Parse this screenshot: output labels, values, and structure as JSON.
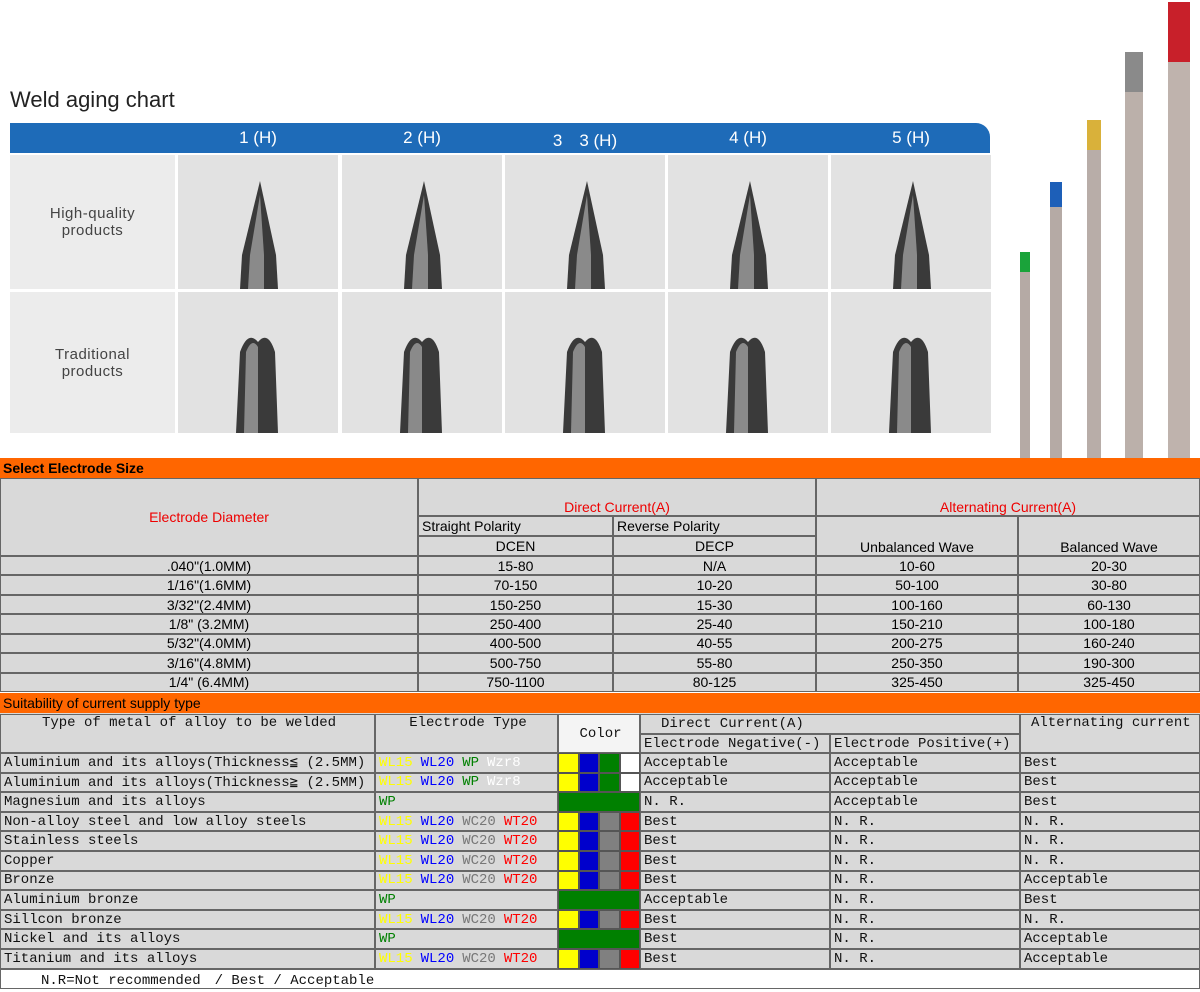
{
  "aging_chart": {
    "title": "Weld aging chart",
    "columns": [
      "1 (H)",
      "2 (H)",
      "3　3 (H)",
      "4 (H)",
      "5 (H)"
    ],
    "rows": [
      "High-quality\nproducts",
      "Traditional\nproducts"
    ]
  },
  "electrode_size": {
    "title": "Select Electrode Size",
    "headers": {
      "diameter": "Electrode Diameter",
      "dc": "Direct Current(A)",
      "ac": "Alternating Current(A)",
      "straight": "Straight Polarity",
      "reverse": "Reverse Polarity",
      "dcen": "DCEN",
      "decp": "DECP",
      "unbalanced": "Unbalanced Wave",
      "balanced": "Balanced Wave"
    },
    "rows": [
      [
        ".040\"(1.0MM)",
        "15-80",
        "N/A",
        "10-60",
        "20-30"
      ],
      [
        "1/16\"(1.6MM)",
        "70-150",
        "10-20",
        "50-100",
        "30-80"
      ],
      [
        "3/32\"(2.4MM)",
        "150-250",
        "15-30",
        "100-160",
        "60-130"
      ],
      [
        "1/8\" (3.2MM)",
        "250-400",
        "25-40",
        "150-210",
        "100-180"
      ],
      [
        "5/32\"(4.0MM)",
        "400-500",
        "40-55",
        "200-275",
        "160-240"
      ],
      [
        "3/16\"(4.8MM)",
        "500-750",
        "55-80",
        "250-350",
        "190-300"
      ],
      [
        "1/4\" (6.4MM)",
        "750-1100",
        "80-125",
        "325-450",
        "325-450"
      ]
    ]
  },
  "suitability": {
    "title": "Suitability of current supply type",
    "headers": {
      "metal": "Type of metal of alloy to be welded",
      "electrode": "Electrode Type",
      "color": "Color",
      "dc": "Direct Current(A)",
      "negative": "Electrode Negative(-)",
      "positive": "Electrode Positive(+)",
      "ac": "Alternating current"
    },
    "rows": [
      {
        "metal": "Aluminium and its alloys(Thickness≦ (2.5MM)",
        "types": [
          {
            "text": "WL15",
            "color": "#ffff00"
          },
          {
            "text": "WL20",
            "color": "#0000ff"
          },
          {
            "text": "WP",
            "color": "#008000"
          },
          {
            "text": "Wzr8",
            "color": "#ffffff"
          }
        ],
        "swatches": [
          "#ffff00",
          "#0000cc",
          "#008000",
          "#ffffff"
        ],
        "dc_negative": "Acceptable",
        "dc_positive": "Acceptable",
        "ac": "Best"
      },
      {
        "metal": "Aluminium and its alloys(Thickness≧ (2.5MM)",
        "types": [
          {
            "text": "WL15",
            "color": "#ffff00"
          },
          {
            "text": "WL20",
            "color": "#0000ff"
          },
          {
            "text": "WP",
            "color": "#008000"
          },
          {
            "text": "Wzr8",
            "color": "#ffffff"
          }
        ],
        "swatches": [
          "#ffff00",
          "#0000cc",
          "#008000",
          "#ffffff"
        ],
        "dc_negative": "Acceptable",
        "dc_positive": "Acceptable",
        "ac": "Best"
      },
      {
        "metal": "Magnesium and its alloys",
        "types": [
          {
            "text": "WP",
            "color": "#008000"
          }
        ],
        "swatches": [
          "#008000"
        ],
        "dc_negative": "N. R.",
        "dc_positive": "Acceptable",
        "ac": "Best"
      },
      {
        "metal": "Non-alloy steel and low alloy steels",
        "types": [
          {
            "text": "WL15",
            "color": "#ffff00"
          },
          {
            "text": "WL20",
            "color": "#0000ff"
          },
          {
            "text": "WC20",
            "color": "#777777"
          },
          {
            "text": "WT20",
            "color": "#ff0000"
          }
        ],
        "swatches": [
          "#ffff00",
          "#0000cc",
          "#808080",
          "#ff0000"
        ],
        "dc_negative": "Best",
        "dc_positive": "N. R.",
        "ac": "N. R."
      },
      {
        "metal": "Stainless steels",
        "types": [
          {
            "text": "WL15",
            "color": "#ffff00"
          },
          {
            "text": "WL20",
            "color": "#0000ff"
          },
          {
            "text": "WC20",
            "color": "#777777"
          },
          {
            "text": "WT20",
            "color": "#ff0000"
          }
        ],
        "swatches": [
          "#ffff00",
          "#0000cc",
          "#808080",
          "#ff0000"
        ],
        "dc_negative": "Best",
        "dc_positive": "N. R.",
        "ac": "N. R."
      },
      {
        "metal": "Copper",
        "types": [
          {
            "text": "WL15",
            "color": "#ffff00"
          },
          {
            "text": "WL20",
            "color": "#0000ff"
          },
          {
            "text": "WC20",
            "color": "#777777"
          },
          {
            "text": "WT20",
            "color": "#ff0000"
          }
        ],
        "swatches": [
          "#ffff00",
          "#0000cc",
          "#808080",
          "#ff0000"
        ],
        "dc_negative": "Best",
        "dc_positive": "N. R.",
        "ac": "N. R."
      },
      {
        "metal": "Bronze",
        "types": [
          {
            "text": "WL15",
            "color": "#ffff00"
          },
          {
            "text": "WL20",
            "color": "#0000ff"
          },
          {
            "text": "WC20",
            "color": "#777777"
          },
          {
            "text": "WT20",
            "color": "#ff0000"
          }
        ],
        "swatches": [
          "#ffff00",
          "#0000cc",
          "#808080",
          "#ff0000"
        ],
        "dc_negative": "Best",
        "dc_positive": "N. R.",
        "ac": "Acceptable"
      },
      {
        "metal": "Aluminium bronze",
        "types": [
          {
            "text": "WP",
            "color": "#008000"
          }
        ],
        "swatches": [
          "#008000"
        ],
        "dc_negative": "Acceptable",
        "dc_positive": "N. R.",
        "ac": "Best"
      },
      {
        "metal": "Sillcon bronze",
        "types": [
          {
            "text": "WL15",
            "color": "#ffff00"
          },
          {
            "text": "WL20",
            "color": "#0000ff"
          },
          {
            "text": "WC20",
            "color": "#777777"
          },
          {
            "text": "WT20",
            "color": "#ff0000"
          }
        ],
        "swatches": [
          "#ffff00",
          "#0000cc",
          "#808080",
          "#ff0000"
        ],
        "dc_negative": "Best",
        "dc_positive": "N. R.",
        "ac": "N. R."
      },
      {
        "metal": "Nickel and its alloys",
        "types": [
          {
            "text": "WP",
            "color": "#008000"
          }
        ],
        "swatches": [
          "#008000"
        ],
        "dc_negative": "Best",
        "dc_positive": "N. R.",
        "ac": "Acceptable"
      },
      {
        "metal": "Titanium and its alloys",
        "types": [
          {
            "text": "WL15",
            "color": "#ffff00"
          },
          {
            "text": "WL20",
            "color": "#0000ff"
          },
          {
            "text": "WC20",
            "color": "#777777"
          },
          {
            "text": "WT20",
            "color": "#ff0000"
          }
        ],
        "swatches": [
          "#ffff00",
          "#0000cc",
          "#808080",
          "#ff0000"
        ],
        "dc_negative": "Best",
        "dc_positive": "N. R.",
        "ac": "Acceptable"
      }
    ],
    "footnote": "N.R=Not recommended　/ Best / Acceptable"
  }
}
